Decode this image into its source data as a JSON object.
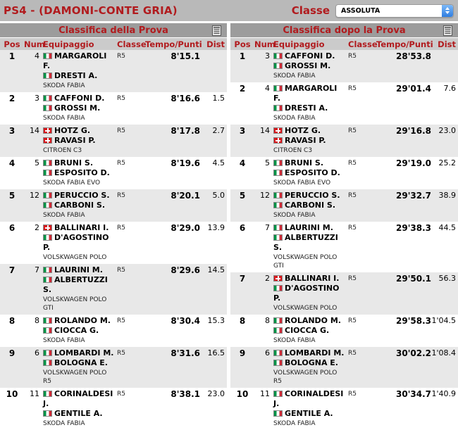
{
  "header": {
    "title": "PS4 - (DAMONI-CONTE GRIA)",
    "classe_label": "Classe",
    "classe_value": "ASSOLUTA"
  },
  "colors": {
    "accent_red": "#b11b1e",
    "topbar_grey": "#b9b9b9",
    "titlebar_grey": "#9c9c9c",
    "colheader_grey": "#cbcbcb",
    "altrow_grey": "#e8e8e8",
    "select_stepper_blue": "#2f7de0",
    "flag_italy": [
      "#009246",
      "#ffffff",
      "#ce2b37"
    ],
    "flag_switzerland": "#d8171c"
  },
  "icons": {
    "titlebar_icon": "notepad-icon",
    "select_stepper": "stepper-arrows-icon"
  },
  "columns": [
    "Pos",
    "Num",
    "Equipaggio",
    "Classe",
    "Tempo/Punti",
    "Dist"
  ],
  "tables": [
    {
      "title": "Classifica della Prova",
      "rows": [
        {
          "pos": "1",
          "num": "4",
          "flag1": "it",
          "driver1": "MARGAROLI F.",
          "flag2": "it",
          "driver2": "DRESTI A.",
          "car": "SKODA FABIA",
          "classe": "R5",
          "tempo": "8'15.1",
          "dist": ""
        },
        {
          "pos": "2",
          "num": "3",
          "flag1": "it",
          "driver1": "CAFFONI D.",
          "flag2": "it",
          "driver2": "GROSSI M.",
          "car": "SKODA FABIA",
          "classe": "R5",
          "tempo": "8'16.6",
          "dist": "1.5"
        },
        {
          "pos": "3",
          "num": "14",
          "flag1": "ch",
          "driver1": "HOTZ G.",
          "flag2": "ch",
          "driver2": "RAVASI P.",
          "car": "CITROEN C3",
          "classe": "R5",
          "tempo": "8'17.8",
          "dist": "2.7"
        },
        {
          "pos": "4",
          "num": "5",
          "flag1": "it",
          "driver1": "BRUNI S.",
          "flag2": "it",
          "driver2": "ESPOSITO D.",
          "car": "SKODA FABIA EVO",
          "classe": "R5",
          "tempo": "8'19.6",
          "dist": "4.5"
        },
        {
          "pos": "5",
          "num": "12",
          "flag1": "it",
          "driver1": "PERUCCIO S.",
          "flag2": "it",
          "driver2": "CARBONI S.",
          "car": "SKODA FABIA",
          "classe": "R5",
          "tempo": "8'20.1",
          "dist": "5.0"
        },
        {
          "pos": "6",
          "num": "2",
          "flag1": "ch",
          "driver1": "BALLINARI I.",
          "flag2": "it",
          "driver2": "D'AGOSTINO P.",
          "car": "VOLSKWAGEN POLO",
          "classe": "R5",
          "tempo": "8'29.0",
          "dist": "13.9"
        },
        {
          "pos": "7",
          "num": "7",
          "flag1": "it",
          "driver1": "LAURINI M.",
          "flag2": "it",
          "driver2": "ALBERTUZZI S.",
          "car": "VOLSKWAGEN POLO GTI",
          "classe": "R5",
          "tempo": "8'29.6",
          "dist": "14.5"
        },
        {
          "pos": "8",
          "num": "8",
          "flag1": "it",
          "driver1": "ROLANDO M.",
          "flag2": "it",
          "driver2": "CIOCCA G.",
          "car": "SKODA FABIA",
          "classe": "R5",
          "tempo": "8'30.4",
          "dist": "15.3"
        },
        {
          "pos": "9",
          "num": "6",
          "flag1": "it",
          "driver1": "LOMBARDI M.",
          "flag2": "it",
          "driver2": "BOLOGNA E.",
          "car": "VOLSKWAGEN POLO R5",
          "classe": "R5",
          "tempo": "8'31.6",
          "dist": "16.5"
        },
        {
          "pos": "10",
          "num": "11",
          "flag1": "it",
          "driver1": "CORINALDESI J.",
          "flag2": "it",
          "driver2": "GENTILE A.",
          "car": "SKODA FABIA",
          "classe": "R5",
          "tempo": "8'38.1",
          "dist": "23.0"
        }
      ]
    },
    {
      "title": "Classifica dopo la Prova",
      "rows": [
        {
          "pos": "1",
          "num": "3",
          "flag1": "it",
          "driver1": "CAFFONI D.",
          "flag2": "it",
          "driver2": "GROSSI M.",
          "car": "SKODA FABIA",
          "classe": "R5",
          "tempo": "28'53.8",
          "dist": ""
        },
        {
          "pos": "2",
          "num": "4",
          "flag1": "it",
          "driver1": "MARGAROLI F.",
          "flag2": "it",
          "driver2": "DRESTI A.",
          "car": "SKODA FABIA",
          "classe": "R5",
          "tempo": "29'01.4",
          "dist": "7.6"
        },
        {
          "pos": "3",
          "num": "14",
          "flag1": "ch",
          "driver1": "HOTZ G.",
          "flag2": "ch",
          "driver2": "RAVASI P.",
          "car": "CITROEN C3",
          "classe": "R5",
          "tempo": "29'16.8",
          "dist": "23.0"
        },
        {
          "pos": "4",
          "num": "5",
          "flag1": "it",
          "driver1": "BRUNI S.",
          "flag2": "it",
          "driver2": "ESPOSITO D.",
          "car": "SKODA FABIA EVO",
          "classe": "R5",
          "tempo": "29'19.0",
          "dist": "25.2"
        },
        {
          "pos": "5",
          "num": "12",
          "flag1": "it",
          "driver1": "PERUCCIO S.",
          "flag2": "it",
          "driver2": "CARBONI S.",
          "car": "SKODA FABIA",
          "classe": "R5",
          "tempo": "29'32.7",
          "dist": "38.9"
        },
        {
          "pos": "6",
          "num": "7",
          "flag1": "it",
          "driver1": "LAURINI M.",
          "flag2": "it",
          "driver2": "ALBERTUZZI S.",
          "car": "VOLSKWAGEN POLO GTI",
          "classe": "R5",
          "tempo": "29'38.3",
          "dist": "44.5"
        },
        {
          "pos": "7",
          "num": "2",
          "flag1": "ch",
          "driver1": "BALLINARI I.",
          "flag2": "it",
          "driver2": "D'AGOSTINO P.",
          "car": "VOLSKWAGEN POLO",
          "classe": "R5",
          "tempo": "29'50.1",
          "dist": "56.3"
        },
        {
          "pos": "8",
          "num": "8",
          "flag1": "it",
          "driver1": "ROLANDO M.",
          "flag2": "it",
          "driver2": "CIOCCA G.",
          "car": "SKODA FABIA",
          "classe": "R5",
          "tempo": "29'58.3",
          "dist": "1'04.5"
        },
        {
          "pos": "9",
          "num": "6",
          "flag1": "it",
          "driver1": "LOMBARDI M.",
          "flag2": "it",
          "driver2": "BOLOGNA E.",
          "car": "VOLSKWAGEN POLO R5",
          "classe": "R5",
          "tempo": "30'02.2",
          "dist": "1'08.4"
        },
        {
          "pos": "10",
          "num": "11",
          "flag1": "it",
          "driver1": "CORINALDESI J.",
          "flag2": "it",
          "driver2": "GENTILE A.",
          "car": "SKODA FABIA",
          "classe": "R5",
          "tempo": "30'34.7",
          "dist": "1'40.9"
        }
      ]
    }
  ]
}
